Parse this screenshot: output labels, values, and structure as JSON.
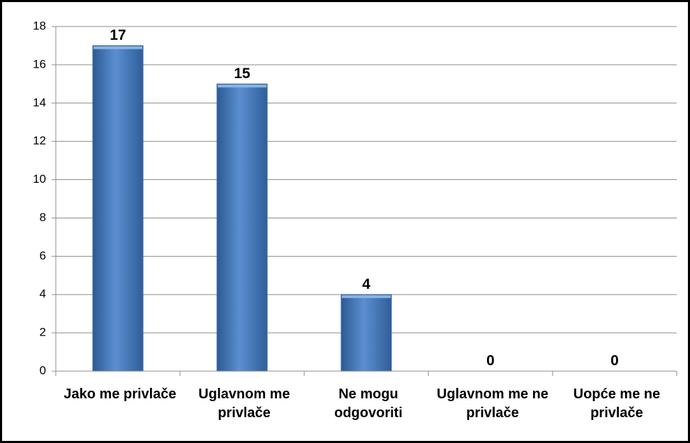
{
  "chart_data": {
    "type": "bar",
    "categories": [
      "Jako me privlače",
      "Uglavnom me privlače",
      "Ne mogu odgovoriti",
      "Uglavnom me ne privlače",
      "Uopće me ne privlače"
    ],
    "values": [
      17,
      15,
      4,
      0,
      0
    ],
    "color": "#4a7ebb",
    "ylim": [
      0,
      18
    ],
    "yticks": [
      0,
      2,
      4,
      6,
      8,
      10,
      12,
      14,
      16,
      18
    ],
    "grid": true
  }
}
